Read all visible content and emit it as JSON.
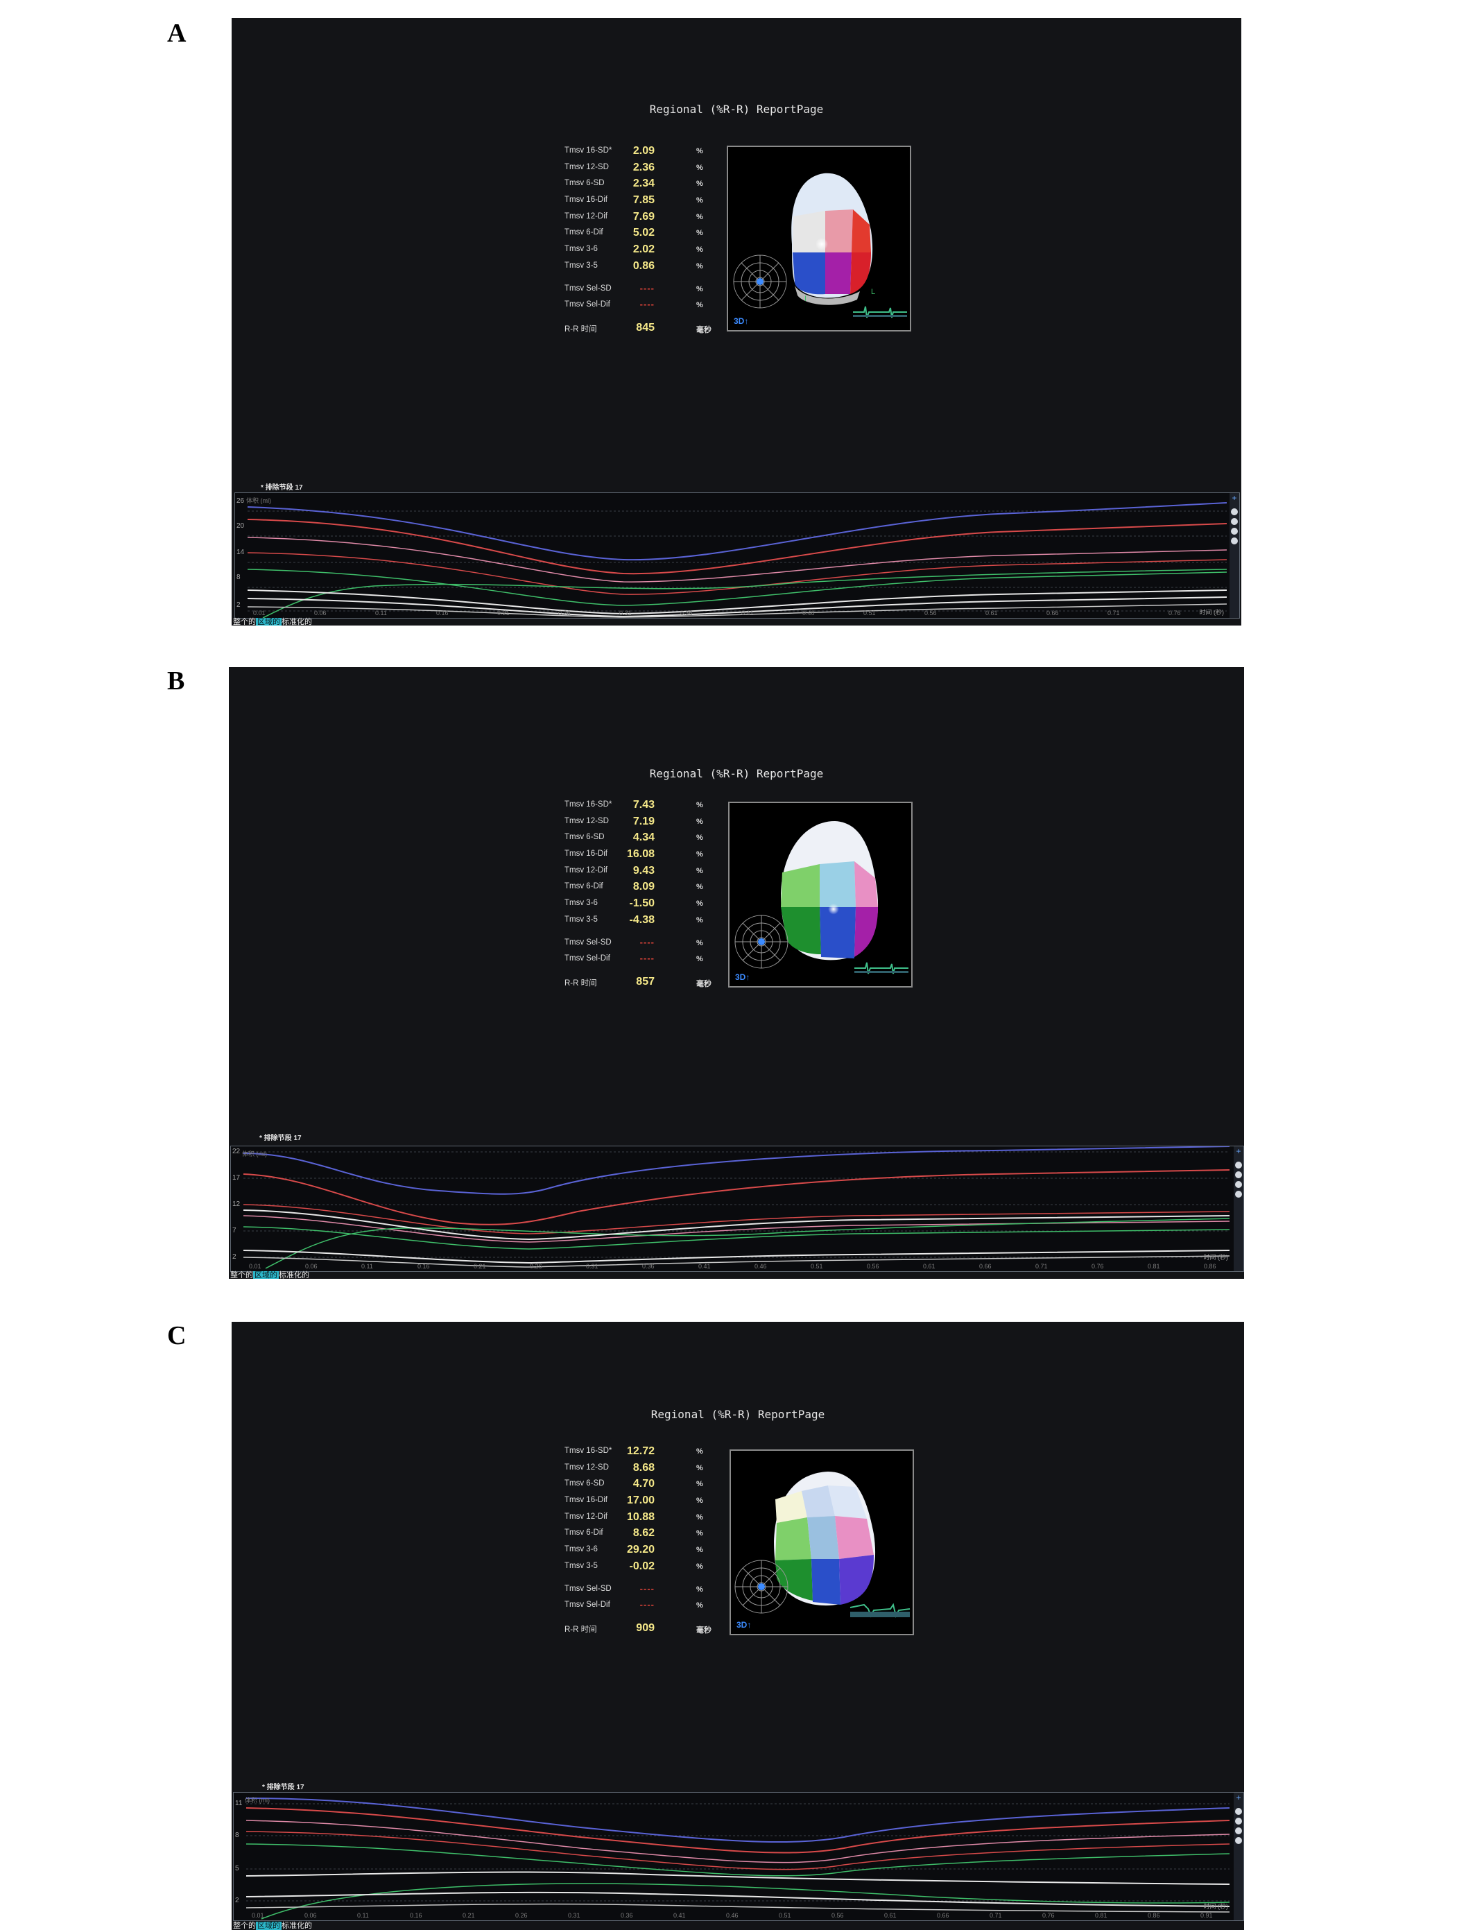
{
  "panels": [
    {
      "letter": "A",
      "title": "Regional (%R-R) ReportPage",
      "metrics": [
        {
          "label": "Tmsv 16-SD*",
          "value": "2.09",
          "unit": "%"
        },
        {
          "label": "Tmsv 12-SD",
          "value": "2.36",
          "unit": "%"
        },
        {
          "label": "Tmsv 6-SD",
          "value": "2.34",
          "unit": "%"
        },
        {
          "label": "Tmsv 16-Dif",
          "value": "7.85",
          "unit": "%"
        },
        {
          "label": "Tmsv 12-Dif",
          "value": "7.69",
          "unit": "%"
        },
        {
          "label": "Tmsv 6-Dif",
          "value": "5.02",
          "unit": "%"
        },
        {
          "label": "Tmsv 3-6",
          "value": "2.02",
          "unit": "%"
        },
        {
          "label": "Tmsv 3-5",
          "value": "0.86",
          "unit": "%"
        }
      ],
      "sel_metrics": [
        {
          "label": "Tmsv Sel-SD",
          "value": "----",
          "unit": "%"
        },
        {
          "label": "Tmsv Sel-Dif",
          "value": "----",
          "unit": "%"
        }
      ],
      "rr": {
        "label": "R-R 时间",
        "value": "845",
        "unit": "毫秒"
      },
      "viewer_label": "3D↑",
      "exclude_note": "* 排除节段 17",
      "y_axis_label": "体积 (ml)",
      "y_ticks": [
        "26",
        "20",
        "14",
        "8",
        "2"
      ],
      "x_ticks": [
        "0.01",
        "0.06",
        "0.11",
        "0.16",
        "0.21",
        "0.26",
        "0.31",
        "0.36",
        "0.41",
        "0.46",
        "0.51",
        "0.56",
        "0.61",
        "0.66",
        "0.71",
        "0.76"
      ],
      "x_axis_label": "时间 (秒)",
      "caption_pre": "整个的",
      "caption_hl": "区域的",
      "caption_post": "标准化的"
    },
    {
      "letter": "B",
      "title": "Regional (%R-R) ReportPage",
      "metrics": [
        {
          "label": "Tmsv 16-SD*",
          "value": "7.43",
          "unit": "%"
        },
        {
          "label": "Tmsv 12-SD",
          "value": "7.19",
          "unit": "%"
        },
        {
          "label": "Tmsv 6-SD",
          "value": "4.34",
          "unit": "%"
        },
        {
          "label": "Tmsv 16-Dif",
          "value": "16.08",
          "unit": "%"
        },
        {
          "label": "Tmsv 12-Dif",
          "value": "9.43",
          "unit": "%"
        },
        {
          "label": "Tmsv 6-Dif",
          "value": "8.09",
          "unit": "%"
        },
        {
          "label": "Tmsv 3-6",
          "value": "-1.50",
          "unit": "%"
        },
        {
          "label": "Tmsv 3-5",
          "value": "-4.38",
          "unit": "%"
        }
      ],
      "sel_metrics": [
        {
          "label": "Tmsv Sel-SD",
          "value": "----",
          "unit": "%"
        },
        {
          "label": "Tmsv Sel-Dif",
          "value": "----",
          "unit": "%"
        }
      ],
      "rr": {
        "label": "R-R 时间",
        "value": "857",
        "unit": "毫秒"
      },
      "viewer_label": "3D↑",
      "exclude_note": "* 排除节段 17",
      "y_axis_label": "体积 (ml)",
      "y_ticks": [
        "22",
        "17",
        "12",
        "7",
        "2"
      ],
      "x_ticks": [
        "0.01",
        "0.06",
        "0.11",
        "0.16",
        "0.21",
        "0.26",
        "0.31",
        "0.36",
        "0.41",
        "0.46",
        "0.51",
        "0.56",
        "0.61",
        "0.66",
        "0.71",
        "0.76",
        "0.81",
        "0.86"
      ],
      "x_axis_label": "时间 (秒)",
      "caption_pre": "整个的",
      "caption_hl": "区域的",
      "caption_post": "标准化的"
    },
    {
      "letter": "C",
      "title": "Regional (%R-R) ReportPage",
      "metrics": [
        {
          "label": "Tmsv 16-SD*",
          "value": "12.72",
          "unit": "%"
        },
        {
          "label": "Tmsv 12-SD",
          "value": "8.68",
          "unit": "%"
        },
        {
          "label": "Tmsv 6-SD",
          "value": "4.70",
          "unit": "%"
        },
        {
          "label": "Tmsv 16-Dif",
          "value": "17.00",
          "unit": "%"
        },
        {
          "label": "Tmsv 12-Dif",
          "value": "10.88",
          "unit": "%"
        },
        {
          "label": "Tmsv 6-Dif",
          "value": "8.62",
          "unit": "%"
        },
        {
          "label": "Tmsv 3-6",
          "value": "29.20",
          "unit": "%"
        },
        {
          "label": "Tmsv 3-5",
          "value": "-0.02",
          "unit": "%"
        }
      ],
      "sel_metrics": [
        {
          "label": "Tmsv Sel-SD",
          "value": "----",
          "unit": "%"
        },
        {
          "label": "Tmsv Sel-Dif",
          "value": "----",
          "unit": "%"
        }
      ],
      "rr": {
        "label": "R-R 时间",
        "value": "909",
        "unit": "毫秒"
      },
      "viewer_label": "3D↑",
      "exclude_note": "* 排除节段 17",
      "y_axis_label": "体积 (ml)",
      "y_ticks": [
        "11",
        "8",
        "5",
        "2"
      ],
      "x_ticks": [
        "0.01",
        "0.06",
        "0.11",
        "0.16",
        "0.21",
        "0.26",
        "0.31",
        "0.36",
        "0.41",
        "0.46",
        "0.51",
        "0.56",
        "0.61",
        "0.66",
        "0.71",
        "0.76",
        "0.81",
        "0.86",
        "0.91"
      ],
      "x_axis_label": "时间 (秒)",
      "caption_pre": "整个的",
      "caption_hl": "区域的",
      "caption_post": "标准化的"
    }
  ],
  "colors": {
    "screen_bg": "#131417",
    "value_yellow": "#f6e98a",
    "dash_red": "#e0443a",
    "viewer_label_blue": "#3c8bff",
    "curve_blue": "#5a63d6",
    "curve_red": "#d84a4a",
    "curve_green": "#3fbf6a",
    "curve_white": "#e8e8e8",
    "curve_pink": "#e08aa8"
  }
}
